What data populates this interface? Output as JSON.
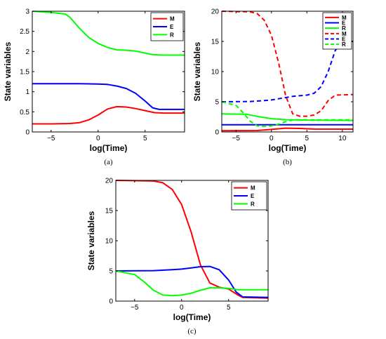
{
  "chart_data": [
    {
      "type": "line",
      "caption": "(a)",
      "xlabel": "log(Time)",
      "ylabel": "State variables",
      "xlim": [
        -7,
        9.2
      ],
      "ylim": [
        0,
        3
      ],
      "xticks": [
        -5,
        0,
        5
      ],
      "yticks": [
        0,
        0.5,
        1,
        1.5,
        2,
        2.5,
        3
      ],
      "ytick_labels": [
        "0",
        "0.5",
        "1",
        "1.5",
        "2",
        "2.5",
        "3"
      ],
      "legend": "top-right",
      "series": [
        {
          "name": "M",
          "color": "#ff0000",
          "dash": "solid",
          "points": [
            [
              -7,
              0.2
            ],
            [
              -5,
              0.2
            ],
            [
              -3,
              0.21
            ],
            [
              -2,
              0.23
            ],
            [
              -1,
              0.3
            ],
            [
              0,
              0.42
            ],
            [
              1,
              0.57
            ],
            [
              2,
              0.63
            ],
            [
              3,
              0.62
            ],
            [
              4,
              0.58
            ],
            [
              5,
              0.53
            ],
            [
              6,
              0.48
            ],
            [
              7,
              0.47
            ],
            [
              9.2,
              0.47
            ]
          ]
        },
        {
          "name": "E",
          "color": "#0000ff",
          "dash": "solid",
          "points": [
            [
              -7,
              1.2
            ],
            [
              -2,
              1.2
            ],
            [
              0,
              1.19
            ],
            [
              1,
              1.18
            ],
            [
              2,
              1.14
            ],
            [
              3,
              1.08
            ],
            [
              4,
              0.96
            ],
            [
              5,
              0.77
            ],
            [
              5.8,
              0.6
            ],
            [
              6.5,
              0.56
            ],
            [
              9.2,
              0.56
            ]
          ]
        },
        {
          "name": "R",
          "color": "#00ff00",
          "dash": "solid",
          "points": [
            [
              -7,
              3.0
            ],
            [
              -5,
              2.97
            ],
            [
              -3.5,
              2.93
            ],
            [
              -3,
              2.85
            ],
            [
              -2,
              2.58
            ],
            [
              -1,
              2.35
            ],
            [
              0,
              2.2
            ],
            [
              1,
              2.1
            ],
            [
              2,
              2.04
            ],
            [
              3,
              2.03
            ],
            [
              4,
              2.01
            ],
            [
              5,
              1.96
            ],
            [
              5.8,
              1.92
            ],
            [
              7,
              1.91
            ],
            [
              9.2,
              1.91
            ]
          ]
        }
      ]
    },
    {
      "type": "line",
      "caption": "(b)",
      "xlabel": "log(Time)",
      "ylabel": "State variables",
      "xlim": [
        -7,
        11.5
      ],
      "ylim": [
        0,
        20
      ],
      "xticks": [
        -5,
        0,
        5,
        10
      ],
      "yticks": [
        0,
        5,
        10,
        15,
        20
      ],
      "ytick_labels": [
        "0",
        "5",
        "10",
        "15",
        "20"
      ],
      "legend": "top-right",
      "series": [
        {
          "name": "M",
          "color": "#ff0000",
          "dash": "solid",
          "points": [
            [
              -7,
              0.2
            ],
            [
              -2,
              0.23
            ],
            [
              0,
              0.42
            ],
            [
              2,
              0.63
            ],
            [
              4,
              0.58
            ],
            [
              6,
              0.48
            ],
            [
              11.5,
              0.47
            ]
          ]
        },
        {
          "name": "E",
          "color": "#0000ff",
          "dash": "solid",
          "points": [
            [
              -7,
              1.2
            ],
            [
              11.5,
              1.2
            ]
          ]
        },
        {
          "name": "R",
          "color": "#00ff00",
          "dash": "solid",
          "points": [
            [
              -7,
              3.0
            ],
            [
              -3.5,
              2.93
            ],
            [
              -2,
              2.58
            ],
            [
              0,
              2.2
            ],
            [
              2,
              2.04
            ],
            [
              5,
              1.96
            ],
            [
              11.5,
              1.91
            ]
          ]
        },
        {
          "name": "M",
          "color": "#ff0000",
          "dash": "dashed",
          "points": [
            [
              -7,
              20
            ],
            [
              -3,
              19.9
            ],
            [
              -2,
              19.6
            ],
            [
              -1,
              18.5
            ],
            [
              0,
              16
            ],
            [
              1,
              11.5
            ],
            [
              2,
              6
            ],
            [
              3,
              3
            ],
            [
              4,
              2.6
            ],
            [
              5,
              2.6
            ],
            [
              6,
              2.8
            ],
            [
              7,
              3.5
            ],
            [
              8,
              5.2
            ],
            [
              9,
              6.1
            ],
            [
              11.5,
              6.2
            ]
          ]
        },
        {
          "name": "E",
          "color": "#0000ff",
          "dash": "dashed",
          "points": [
            [
              -7,
              5
            ],
            [
              -3,
              5.05
            ],
            [
              -1,
              5.2
            ],
            [
              0,
              5.3
            ],
            [
              1,
              5.5
            ],
            [
              3,
              5.9
            ],
            [
              5,
              6.1
            ],
            [
              6,
              6.4
            ],
            [
              7,
              7.5
            ],
            [
              8,
              10
            ],
            [
              9,
              13.5
            ],
            [
              10,
              15
            ],
            [
              11.5,
              15
            ]
          ]
        },
        {
          "name": "R",
          "color": "#00ff00",
          "dash": "dashed",
          "points": [
            [
              -7,
              5
            ],
            [
              -5,
              4.4
            ],
            [
              -4,
              3.2
            ],
            [
              -3,
              1.8
            ],
            [
              -2,
              1.0
            ],
            [
              -1,
              0.9
            ],
            [
              0,
              1.0
            ],
            [
              1,
              1.3
            ],
            [
              2,
              1.7
            ],
            [
              3,
              2.0
            ],
            [
              5,
              2.0
            ],
            [
              11.5,
              2.0
            ]
          ]
        }
      ]
    },
    {
      "type": "line",
      "caption": "(c)",
      "xlabel": "log(Time)",
      "ylabel": "State variables",
      "xlim": [
        -7,
        9.2
      ],
      "ylim": [
        0,
        20
      ],
      "xticks": [
        -5,
        0,
        5
      ],
      "yticks": [
        0,
        5,
        10,
        15,
        20
      ],
      "ytick_labels": [
        "0",
        "5",
        "10",
        "15",
        "20"
      ],
      "legend": "top-right",
      "series": [
        {
          "name": "M",
          "color": "#ff0000",
          "dash": "solid",
          "points": [
            [
              -7,
              20
            ],
            [
              -3,
              19.9
            ],
            [
              -2,
              19.6
            ],
            [
              -1,
              18.5
            ],
            [
              0,
              16
            ],
            [
              1,
              11.5
            ],
            [
              2,
              6
            ],
            [
              3,
              3
            ],
            [
              4,
              2.3
            ],
            [
              5,
              2
            ],
            [
              6,
              1
            ],
            [
              6.5,
              0.6
            ],
            [
              9.2,
              0.5
            ]
          ]
        },
        {
          "name": "E",
          "color": "#0000ff",
          "dash": "solid",
          "points": [
            [
              -7,
              5
            ],
            [
              -3,
              5.05
            ],
            [
              -1,
              5.2
            ],
            [
              0,
              5.3
            ],
            [
              1,
              5.5
            ],
            [
              2,
              5.7
            ],
            [
              3,
              5.75
            ],
            [
              4,
              5.2
            ],
            [
              5,
              3.5
            ],
            [
              5.8,
              1.5
            ],
            [
              6.5,
              0.7
            ],
            [
              9.2,
              0.6
            ]
          ]
        },
        {
          "name": "R",
          "color": "#00ff00",
          "dash": "solid",
          "points": [
            [
              -7,
              5
            ],
            [
              -5,
              4.4
            ],
            [
              -4,
              3.2
            ],
            [
              -3,
              1.8
            ],
            [
              -2,
              1.0
            ],
            [
              -1,
              0.9
            ],
            [
              0,
              1.0
            ],
            [
              1,
              1.3
            ],
            [
              2,
              1.8
            ],
            [
              3,
              2.2
            ],
            [
              4,
              2.2
            ],
            [
              5,
              2.1
            ],
            [
              6,
              1.9
            ],
            [
              9.2,
              1.9
            ]
          ]
        }
      ]
    }
  ]
}
